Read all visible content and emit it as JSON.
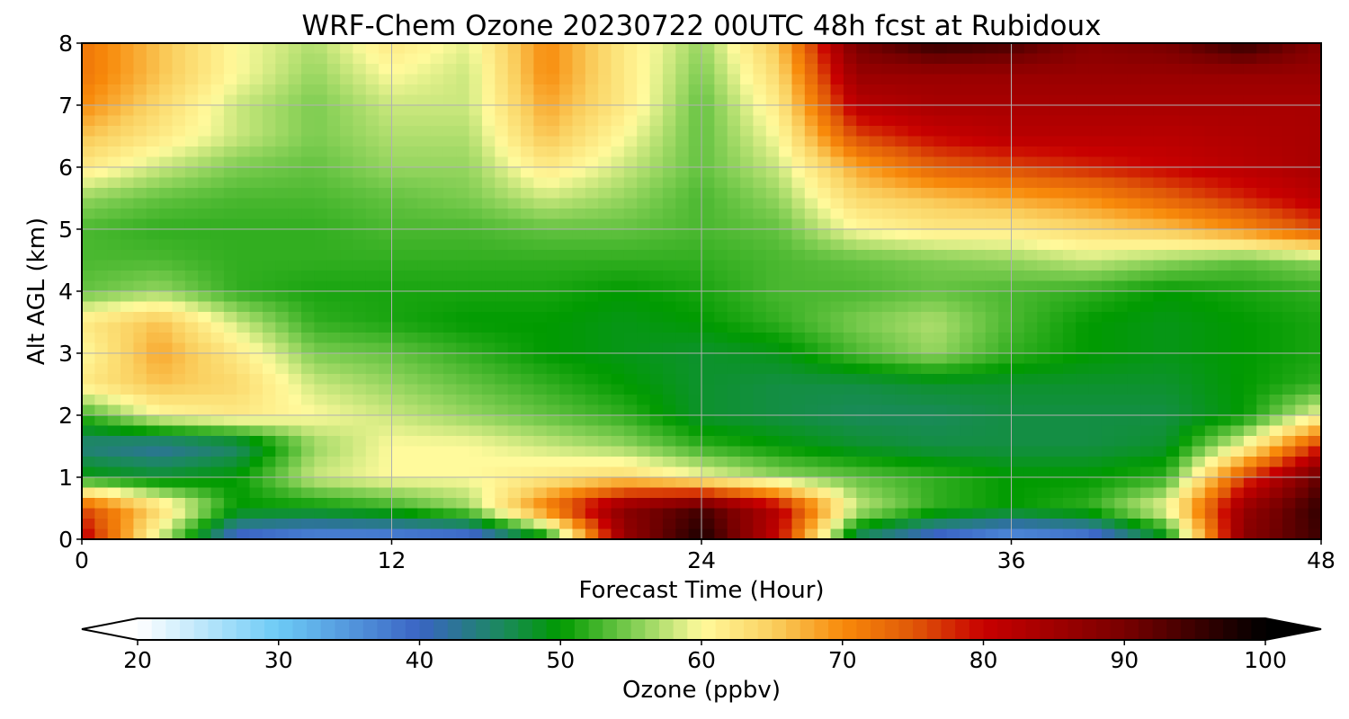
{
  "chart_data": {
    "type": "heatmap",
    "title": "WRF-Chem Ozone  20230722 00UTC 48h fcst at Rubidoux",
    "xlabel": "Forecast Time (Hour)",
    "ylabel": "Alt AGL (km)",
    "xlim": [
      0,
      48
    ],
    "ylim": [
      0,
      8
    ],
    "x_ticks": [
      0,
      12,
      24,
      36,
      48
    ],
    "y_ticks": [
      0,
      1,
      2,
      3,
      4,
      5,
      6,
      7,
      8
    ],
    "grid": true,
    "x": [
      0,
      3,
      6,
      9,
      12,
      15,
      18,
      21,
      24,
      27,
      30,
      33,
      36,
      39,
      42,
      45,
      48
    ],
    "y": [
      0,
      0.5,
      1,
      1.5,
      2,
      2.5,
      3,
      3.5,
      4,
      4.5,
      5,
      5.5,
      6,
      6.5,
      7,
      7.5,
      8
    ],
    "z": [
      [
        82,
        58,
        38,
        35,
        35,
        36,
        48,
        86,
        98,
        80,
        45,
        38,
        34,
        36,
        48,
        88,
        95
      ],
      [
        76,
        64,
        50,
        50,
        52,
        56,
        72,
        88,
        94,
        82,
        58,
        52,
        50,
        52,
        60,
        86,
        96
      ],
      [
        50,
        48,
        50,
        58,
        60,
        60,
        62,
        64,
        60,
        56,
        54,
        52,
        50,
        50,
        52,
        76,
        92
      ],
      [
        44,
        42,
        45,
        56,
        60,
        60,
        58,
        56,
        52,
        50,
        48,
        47,
        47,
        47,
        48,
        60,
        78
      ],
      [
        52,
        60,
        62,
        60,
        58,
        56,
        54,
        52,
        48,
        47,
        46,
        46,
        47,
        47,
        47,
        50,
        60
      ],
      [
        62,
        66,
        64,
        58,
        56,
        54,
        52,
        50,
        48,
        47,
        47,
        48,
        48,
        48,
        48,
        50,
        52
      ],
      [
        60,
        68,
        62,
        55,
        54,
        52,
        50,
        49,
        48,
        49,
        53,
        56,
        52,
        50,
        49,
        50,
        51
      ],
      [
        62,
        66,
        58,
        52,
        51,
        50,
        50,
        49,
        50,
        52,
        55,
        57,
        53,
        50,
        49,
        50,
        51
      ],
      [
        54,
        56,
        52,
        51,
        51,
        51,
        51,
        50,
        51,
        53,
        53,
        54,
        53,
        52,
        50,
        51,
        52
      ],
      [
        53,
        53,
        52,
        52,
        52,
        52,
        52,
        52,
        52,
        53,
        54,
        55,
        56,
        58,
        56,
        54,
        56
      ],
      [
        53,
        52,
        52,
        52,
        53,
        53,
        54,
        54,
        53,
        54,
        60,
        62,
        62,
        64,
        66,
        70,
        76
      ],
      [
        56,
        54,
        53,
        53,
        54,
        55,
        58,
        56,
        53,
        56,
        64,
        66,
        68,
        70,
        74,
        78,
        82
      ],
      [
        62,
        58,
        55,
        54,
        56,
        56,
        62,
        58,
        54,
        58,
        68,
        74,
        76,
        78,
        80,
        82,
        84
      ],
      [
        66,
        62,
        58,
        55,
        57,
        57,
        66,
        60,
        54,
        60,
        76,
        80,
        82,
        82,
        82,
        83,
        84
      ],
      [
        70,
        64,
        58,
        55,
        58,
        58,
        68,
        62,
        54,
        62,
        82,
        84,
        84,
        84,
        84,
        84,
        84
      ],
      [
        72,
        66,
        60,
        56,
        60,
        58,
        70,
        62,
        55,
        64,
        86,
        86,
        86,
        86,
        86,
        86,
        86
      ],
      [
        72,
        66,
        60,
        57,
        62,
        59,
        70,
        62,
        56,
        66,
        90,
        96,
        94,
        88,
        90,
        96,
        88
      ]
    ],
    "colorbar": {
      "label": "Ozone  (ppbv)",
      "min": 20,
      "max": 100,
      "ticks": [
        20,
        30,
        40,
        50,
        60,
        70,
        80,
        90,
        100
      ],
      "extend": "both",
      "orientation": "horizontal",
      "colors": [
        {
          "v": 20,
          "c": "#ffffff"
        },
        {
          "v": 30,
          "c": "#6ccaf5"
        },
        {
          "v": 40,
          "c": "#3a64c4"
        },
        {
          "v": 46,
          "c": "#1a8a5a"
        },
        {
          "v": 50,
          "c": "#009a00"
        },
        {
          "v": 55,
          "c": "#7ccc50"
        },
        {
          "v": 60,
          "c": "#fffa9c"
        },
        {
          "v": 65,
          "c": "#fad060"
        },
        {
          "v": 70,
          "c": "#f88a0a"
        },
        {
          "v": 75,
          "c": "#e05808"
        },
        {
          "v": 80,
          "c": "#c80000"
        },
        {
          "v": 90,
          "c": "#780000"
        },
        {
          "v": 100,
          "c": "#000000"
        }
      ]
    }
  }
}
